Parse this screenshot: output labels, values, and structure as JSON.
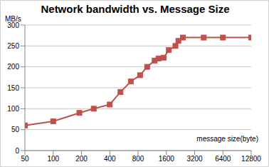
{
  "chart_data": {
    "type": "line",
    "title": "Network bandwidth vs. Message Size",
    "y_label": "MB/s",
    "x_label": "message size(byte)",
    "x": [
      50,
      100,
      190,
      270,
      400,
      520,
      670,
      840,
      1000,
      1200,
      1320,
      1500,
      1700,
      2000,
      2150,
      2400,
      4000,
      6400,
      12800
    ],
    "values": [
      60,
      70,
      90,
      100,
      110,
      140,
      165,
      180,
      200,
      215,
      220,
      222,
      240,
      250,
      262,
      270,
      270,
      270,
      270
    ],
    "color": "#c0504d",
    "marker": "square",
    "log": "x",
    "xlim": [
      50,
      12800
    ],
    "xticks": [
      50,
      100,
      200,
      400,
      800,
      1600,
      3200,
      6400,
      12800
    ],
    "ylim": [
      0,
      300
    ],
    "yticks": [
      0,
      50,
      100,
      150,
      200,
      250,
      300
    ],
    "grid": true
  }
}
